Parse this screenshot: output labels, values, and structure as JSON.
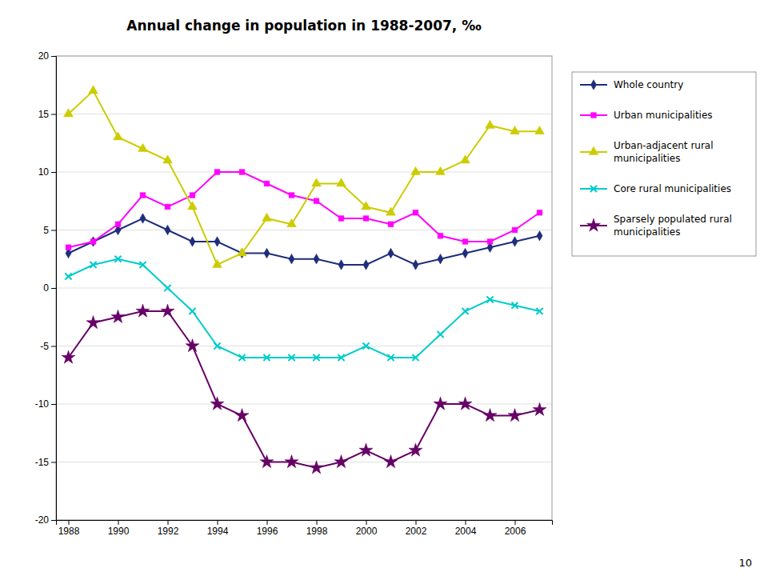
{
  "chart_data": {
    "type": "line",
    "title": "Annual change in population in 1988-2007, ‰",
    "x": [
      1988,
      1989,
      1990,
      1991,
      1992,
      1993,
      1994,
      1995,
      1996,
      1997,
      1998,
      1999,
      2000,
      2001,
      2002,
      2003,
      2004,
      2005,
      2006,
      2007
    ],
    "series": [
      {
        "name": "Whole country",
        "color": "#1f2d7a",
        "marker": "diamond",
        "values": [
          3,
          4,
          5,
          6,
          5,
          4,
          4,
          3,
          3,
          2.5,
          2.5,
          2,
          2,
          3,
          2,
          2.5,
          3,
          3.5,
          4,
          4.5
        ]
      },
      {
        "name": "Urban municipalities",
        "color": "#ff00ff",
        "marker": "square",
        "values": [
          3.5,
          4,
          5.5,
          8,
          7,
          8,
          10,
          10,
          9,
          8,
          7.5,
          6,
          6,
          5.5,
          6.5,
          4.5,
          4,
          4,
          5,
          6.5
        ]
      },
      {
        "name": "Urban-adjacent rural\nmunicipalities",
        "color": "#cccc00",
        "marker": "triangle",
        "values": [
          15,
          17,
          13,
          12,
          11,
          7,
          2,
          3,
          6,
          5.5,
          9,
          9,
          7,
          6.5,
          10,
          10,
          11,
          14,
          13.5,
          13.5
        ]
      },
      {
        "name": "Core rural municipalities",
        "color": "#00cccc",
        "marker": "x",
        "values": [
          1,
          2,
          2.5,
          2,
          0,
          -2,
          -5,
          -6,
          -6,
          -6,
          -6,
          -6,
          -5,
          -6,
          -6,
          -4,
          -2,
          -1,
          -1.5,
          -2
        ]
      },
      {
        "name": "Sparsely populated rural\nmunicipalities",
        "color": "#660066",
        "marker": "star",
        "values": [
          -6,
          -3,
          -2.5,
          -2,
          -2,
          -5,
          -10,
          -11,
          -15,
          -15,
          -15.5,
          -15,
          -14,
          -15,
          -14,
          -10,
          -10,
          -11,
          -11,
          -10.5
        ]
      }
    ],
    "xlim": [
      1987.5,
      2007.5
    ],
    "xticks": [
      1988,
      1990,
      1992,
      1994,
      1996,
      1998,
      2000,
      2002,
      2004,
      2006
    ],
    "ylim": [
      -20,
      20
    ],
    "yticks": [
      -20,
      -15,
      -10,
      -5,
      0,
      5,
      10,
      15,
      20
    ],
    "grid": true,
    "legend": "right",
    "annotations": [
      "10"
    ]
  }
}
